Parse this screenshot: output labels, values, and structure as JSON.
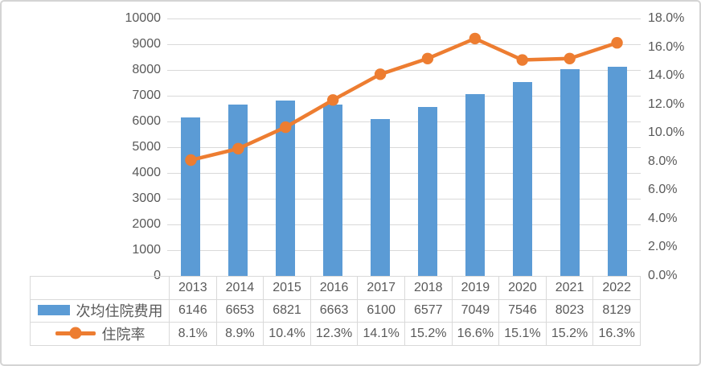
{
  "chart_data": {
    "type": "combo",
    "categories": [
      "2013",
      "2014",
      "2015",
      "2016",
      "2017",
      "2018",
      "2019",
      "2020",
      "2021",
      "2022"
    ],
    "series": [
      {
        "name": "次均住院费用",
        "type": "bar",
        "axis": "left",
        "color": "#5B9BD5",
        "values": [
          6146,
          6653,
          6821,
          6663,
          6100,
          6577,
          7049,
          7546,
          8023,
          8129
        ],
        "labels": [
          "6146",
          "6653",
          "6821",
          "6663",
          "6100",
          "6577",
          "7049",
          "7546",
          "8023",
          "8129"
        ]
      },
      {
        "name": "住院率",
        "type": "line",
        "axis": "right",
        "color": "#ED7D31",
        "values": [
          8.1,
          8.9,
          10.4,
          12.3,
          14.1,
          15.2,
          16.6,
          15.1,
          15.2,
          16.3
        ],
        "labels": [
          "8.1%",
          "8.9%",
          "10.4%",
          "12.3%",
          "14.1%",
          "15.2%",
          "16.6%",
          "15.1%",
          "15.2%",
          "16.3%"
        ]
      }
    ],
    "left_axis": {
      "min": 0,
      "max": 10000,
      "step": 1000,
      "ticks": [
        "0",
        "1000",
        "2000",
        "3000",
        "4000",
        "5000",
        "6000",
        "7000",
        "8000",
        "9000",
        "10000"
      ]
    },
    "right_axis": {
      "min": 0,
      "max": 18,
      "step": 2,
      "ticks": [
        "0.0%",
        "2.0%",
        "4.0%",
        "6.0%",
        "8.0%",
        "10.0%",
        "12.0%",
        "14.0%",
        "16.0%",
        "18.0%"
      ]
    },
    "grid": true,
    "legend_position": "data-table-left",
    "colors": {
      "bar": "#5B9BD5",
      "line": "#ED7D31",
      "text": "#595959",
      "gridline": "#D9D9D9",
      "table_border": "#D9D9D9",
      "frame_border": "#D4D4D4"
    }
  }
}
